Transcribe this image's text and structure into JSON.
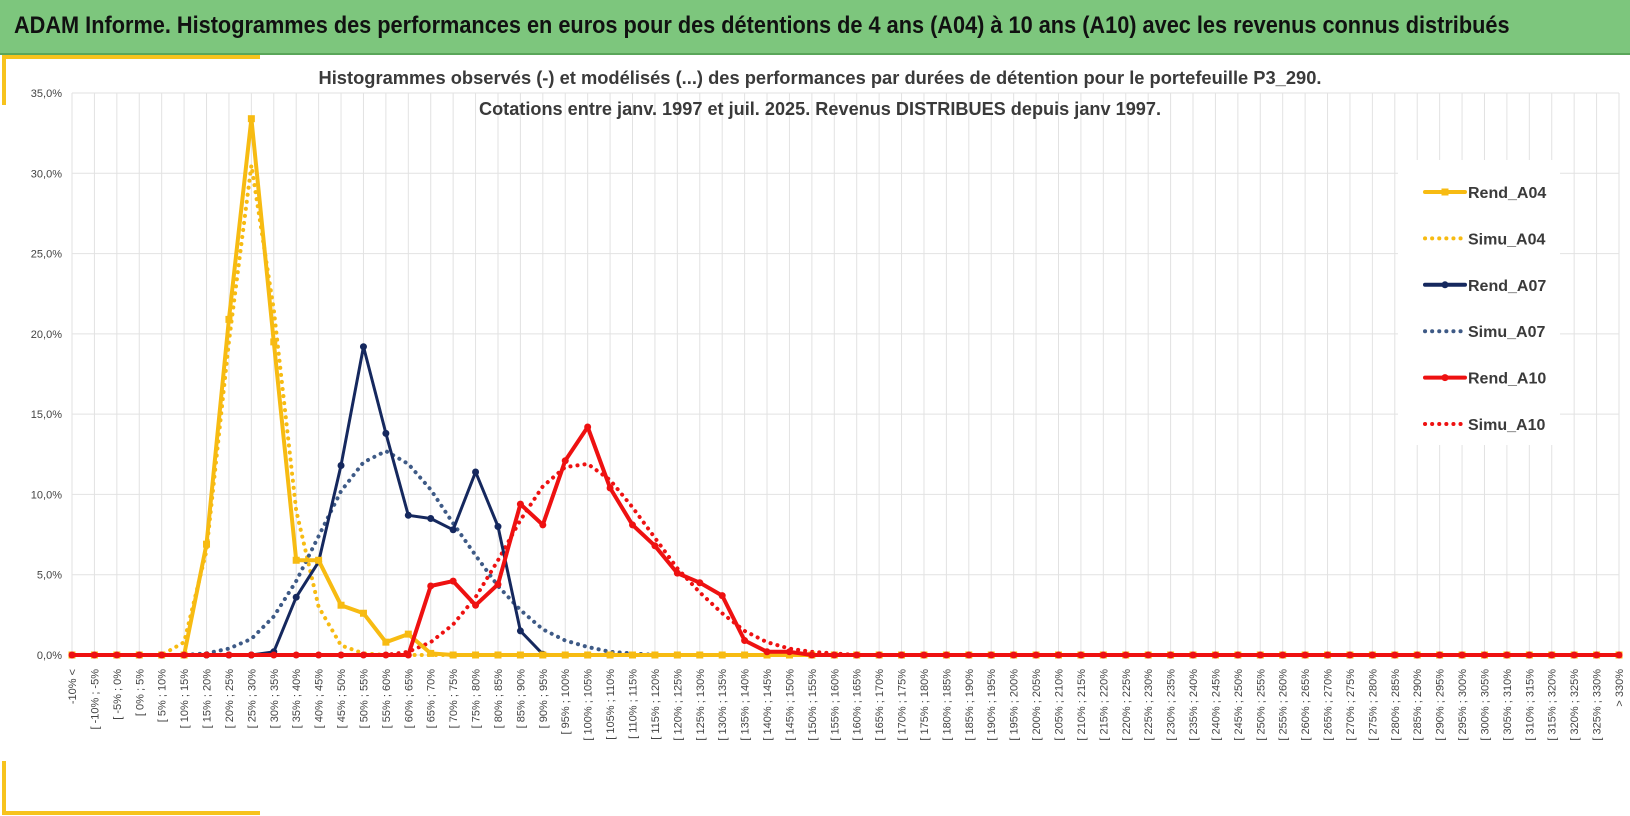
{
  "header": {
    "title": "ADAM Informe. Histogrammes des performances en euros pour des détentions de 4 ans (A04) à 10 ans (A10) avec les revenus connus distribués"
  },
  "colors": {
    "header_bg": "#7dc67d",
    "accent": "#f7c31d",
    "a04": "#f7bb12",
    "a07": "#15285e",
    "a10": "#ee1111",
    "sim_a07": "#3e5a86"
  },
  "chart_data": {
    "type": "line",
    "title": "Histogrammes observés (-) et modélisés (...) des performances par durées de détention pour le portefeuille P3_290.",
    "subtitle": "Cotations entre janv. 1997 et juil. 2025. Revenus DISTRIBUES depuis janv 1997.",
    "xlabel": "",
    "ylabel": "",
    "ylim": [
      0,
      35
    ],
    "yticks": [
      "0,0%",
      "5,0%",
      "10,0%",
      "15,0%",
      "20,0%",
      "25,0%",
      "30,0%",
      "35,0%"
    ],
    "grid": true,
    "legend_position": "right",
    "categories": [
      "-10% <",
      "[ -10% ; -5%",
      "[ -5% ; 0%",
      "[ 0% ; 5%",
      "[ 5% ; 10%",
      "[ 10% ; 15%",
      "[ 15% ; 20%",
      "[ 20% ; 25%",
      "[ 25% ; 30%",
      "[ 30% ; 35%",
      "[ 35% ; 40%",
      "[ 40% ; 45%",
      "[ 45% ; 50%",
      "[ 50% ; 55%",
      "[ 55% ; 60%",
      "[ 60% ; 65%",
      "[ 65% ; 70%",
      "[ 70% ; 75%",
      "[ 75% ; 80%",
      "[ 80% ; 85%",
      "[ 85% ; 90%",
      "[ 90% ; 95%",
      "[ 95% ; 100%",
      "[ 100% ; 105%",
      "[ 105% ; 110%",
      "[ 110% ; 115%",
      "[ 115% ; 120%",
      "[ 120% ; 125%",
      "[ 125% ; 130%",
      "[ 130% ; 135%",
      "[ 135% ; 140%",
      "[ 140% ; 145%",
      "[ 145% ; 150%",
      "[ 150% ; 155%",
      "[ 155% ; 160%",
      "[ 160% ; 165%",
      "[ 165% ; 170%",
      "[ 170% ; 175%",
      "[ 175% ; 180%",
      "[ 180% ; 185%",
      "[ 185% ; 190%",
      "[ 190% ; 195%",
      "[ 195% ; 200%",
      "[ 200% ; 205%",
      "[ 205% ; 210%",
      "[ 210% ; 215%",
      "[ 215% ; 220%",
      "[ 220% ; 225%",
      "[ 225% ; 230%",
      "[ 230% ; 235%",
      "[ 235% ; 240%",
      "[ 240% ; 245%",
      "[ 245% ; 250%",
      "[ 250% ; 255%",
      "[ 255% ; 260%",
      "[ 260% ; 265%",
      "[ 265% ; 270%",
      "[ 270% ; 275%",
      "[ 275% ; 280%",
      "[ 280% ; 285%",
      "[ 285% ; 290%",
      "[ 290% ; 295%",
      "[ 295% ; 300%",
      "[ 300% ; 305%",
      "[ 305% ; 310%",
      "[ 310% ; 315%",
      "[ 315% ; 320%",
      "[ 320% ; 325%",
      "[ 325% ; 330%",
      "> 330%"
    ],
    "series": [
      {
        "name": "Rend_A04",
        "style": "solid",
        "marker": "square",
        "color": "#f7bb12",
        "values": [
          0,
          0,
          0,
          0,
          0,
          0,
          6.9,
          20.9,
          33.4,
          19.5,
          5.9,
          5.9,
          3.1,
          2.6,
          0.8,
          1.3,
          0.1,
          0,
          0,
          0,
          0,
          0,
          0,
          0,
          0,
          0,
          0,
          0,
          0,
          0,
          0,
          0,
          0,
          0,
          0,
          0,
          0,
          0,
          0,
          0,
          0,
          0,
          0,
          0,
          0,
          0,
          0,
          0,
          0,
          0,
          0,
          0,
          0,
          0,
          0,
          0,
          0,
          0,
          0,
          0,
          0,
          0,
          0,
          0,
          0,
          0,
          0,
          0,
          0,
          0
        ]
      },
      {
        "name": "Simu_A04",
        "style": "dotted",
        "marker": "none",
        "color": "#f7bb12",
        "values": [
          0,
          0,
          0,
          0,
          0,
          0.8,
          6.5,
          19.5,
          30.5,
          21.5,
          9.0,
          3.0,
          0.6,
          0.1,
          0,
          0,
          0,
          0,
          0,
          0,
          0,
          0,
          0,
          0,
          0,
          0,
          0,
          0,
          0,
          0,
          0,
          0,
          0,
          0,
          0,
          0,
          0,
          0,
          0,
          0,
          0,
          0,
          0,
          0,
          0,
          0,
          0,
          0,
          0,
          0,
          0,
          0,
          0,
          0,
          0,
          0,
          0,
          0,
          0,
          0,
          0,
          0,
          0,
          0,
          0,
          0,
          0,
          0,
          0,
          0
        ]
      },
      {
        "name": "Rend_A07",
        "style": "solid",
        "marker": "circle",
        "color": "#15285e",
        "values": [
          0,
          0,
          0,
          0,
          0,
          0,
          0,
          0,
          0,
          0.2,
          3.6,
          5.8,
          11.8,
          19.2,
          13.8,
          8.7,
          8.5,
          7.8,
          11.4,
          8.0,
          1.5,
          0.05,
          0,
          0,
          0,
          0,
          0,
          0,
          0,
          0,
          0,
          0,
          0,
          0,
          0,
          0,
          0,
          0,
          0,
          0,
          0,
          0,
          0,
          0,
          0,
          0,
          0,
          0,
          0,
          0,
          0,
          0,
          0,
          0,
          0,
          0,
          0,
          0,
          0,
          0,
          0,
          0,
          0,
          0,
          0,
          0,
          0,
          0,
          0,
          0
        ]
      },
      {
        "name": "Simu_A07",
        "style": "dotted",
        "marker": "none",
        "color": "#3e5a86",
        "values": [
          0,
          0,
          0,
          0,
          0,
          0,
          0.1,
          0.4,
          1.0,
          2.4,
          4.6,
          7.4,
          10.2,
          12.0,
          12.7,
          11.9,
          10.3,
          8.2,
          6.2,
          4.3,
          2.8,
          1.6,
          0.9,
          0.5,
          0.2,
          0.1,
          0,
          0,
          0,
          0,
          0,
          0,
          0,
          0,
          0,
          0,
          0,
          0,
          0,
          0,
          0,
          0,
          0,
          0,
          0,
          0,
          0,
          0,
          0,
          0,
          0,
          0,
          0,
          0,
          0,
          0,
          0,
          0,
          0,
          0,
          0,
          0,
          0,
          0,
          0,
          0,
          0,
          0,
          0,
          0
        ]
      },
      {
        "name": "Rend_A10",
        "style": "solid",
        "marker": "circle",
        "color": "#ee1111",
        "values": [
          0,
          0,
          0,
          0,
          0,
          0,
          0,
          0,
          0,
          0,
          0,
          0,
          0,
          0,
          0,
          0,
          4.3,
          4.6,
          3.1,
          4.4,
          9.4,
          8.1,
          12.1,
          14.2,
          10.4,
          8.1,
          6.8,
          5.1,
          4.5,
          3.7,
          0.9,
          0.2,
          0.2,
          0,
          0,
          0,
          0,
          0,
          0,
          0,
          0,
          0,
          0,
          0,
          0,
          0,
          0,
          0,
          0,
          0,
          0,
          0,
          0,
          0,
          0,
          0,
          0,
          0,
          0,
          0,
          0,
          0,
          0,
          0,
          0,
          0,
          0,
          0,
          0,
          0
        ]
      },
      {
        "name": "Simu_A10",
        "style": "dotted",
        "marker": "none",
        "color": "#ee1111",
        "values": [
          0,
          0,
          0,
          0,
          0,
          0,
          0,
          0,
          0,
          0,
          0,
          0,
          0,
          0,
          0,
          0.2,
          0.8,
          1.9,
          3.6,
          5.9,
          8.4,
          10.5,
          11.7,
          11.9,
          10.9,
          9.2,
          7.3,
          5.4,
          3.9,
          2.6,
          1.5,
          0.8,
          0.4,
          0.2,
          0.1,
          0,
          0,
          0,
          0,
          0,
          0,
          0,
          0,
          0,
          0,
          0,
          0,
          0,
          0,
          0,
          0,
          0,
          0,
          0,
          0,
          0,
          0,
          0,
          0,
          0,
          0,
          0,
          0,
          0,
          0,
          0,
          0,
          0,
          0,
          0
        ]
      }
    ]
  }
}
